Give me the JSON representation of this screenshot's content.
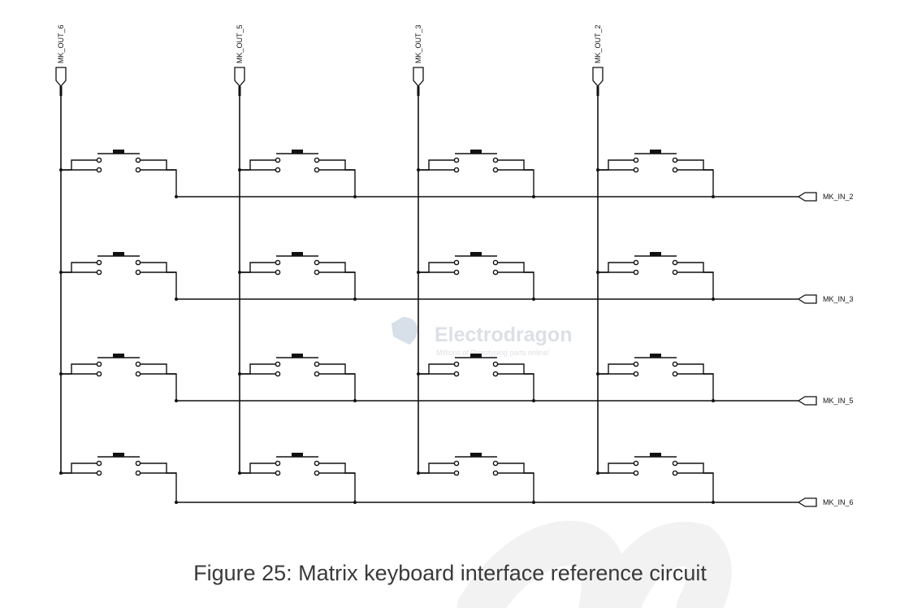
{
  "outputs": [
    "MK_OUT_6",
    "MK_OUT_5",
    "MK_OUT_3",
    "MK_OUT_2"
  ],
  "inputs": [
    "MK_IN_2",
    "MK_IN_3",
    "MK_IN_5",
    "MK_IN_6"
  ],
  "watermark": {
    "brand": "Electrodragon",
    "tagline": "Millions of Prototyping parts online!"
  },
  "caption": "Figure 25: Matrix keyboard interface reference circuit"
}
